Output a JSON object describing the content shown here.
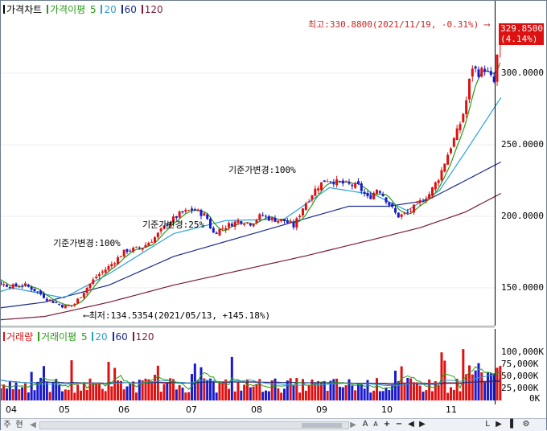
{
  "price_legend": {
    "title": "가격차트",
    "ma_label": "가격이평",
    "periods": [
      "5",
      "20",
      "60",
      "120"
    ]
  },
  "volume_legend": {
    "title": "거래량",
    "ma_label": "거래이평",
    "periods": [
      "5",
      "20",
      "60",
      "120"
    ]
  },
  "colors": {
    "up": "#dd1111",
    "down": "#1a1acc",
    "ma5": "#2a9a18",
    "ma20": "#2aa0d8",
    "ma60": "#1b2d8a",
    "ma120": "#7a1a3a"
  },
  "price_axis": [
    "300.0000",
    "250.0000",
    "200.0000",
    "150.0000"
  ],
  "volume_axis": [
    "100,000K",
    "75,000K",
    "50,000K",
    "25,000K",
    "0K"
  ],
  "current_price": "329.8500",
  "current_change": "(4.14%)",
  "high_annotation": "최고:330.8800(2021/11/19, -0.31%)",
  "low_annotation": "최저:134.5354(2021/05/13, +145.18%)",
  "base_price_changes": [
    "기준가변경:100%",
    "기준가변경:25%",
    "기준가변경:100%"
  ],
  "x_labels": [
    "04",
    "05",
    "06",
    "07",
    "08",
    "09",
    "10",
    "11"
  ],
  "bottom_bar": {
    "period_tabs": [
      "주",
      "현"
    ],
    "scroll_left": "◀",
    "scroll_right": "▶",
    "font_increase": "A",
    "font_decrease": "A",
    "zoom_in": "+",
    "zoom_out": "−",
    "move_left": "◀",
    "move_right": "▶",
    "lines": "L",
    "end_right": "▶",
    "bars": "▌",
    "settings": "⚙"
  },
  "chart_data": {
    "type": "candlestick",
    "ylim": [
      125,
      340
    ],
    "volume_ylim": [
      0,
      110000
    ],
    "x_labels": [
      "04",
      "05",
      "06",
      "07",
      "08",
      "09",
      "10",
      "11"
    ],
    "high": {
      "value": 330.88,
      "date": "2021/11/19",
      "pct": "-0.31%"
    },
    "low": {
      "value": 134.5354,
      "date": "2021/05/13",
      "pct": "+145.18%"
    },
    "last": {
      "value": 329.85,
      "pct": "4.14%"
    },
    "close_anchors": [
      {
        "month": 3.3,
        "close": 137
      },
      {
        "month": 3.5,
        "close": 155
      },
      {
        "month": 3.65,
        "close": 160
      },
      {
        "month": 3.8,
        "close": 153
      },
      {
        "month": 4.0,
        "close": 151
      },
      {
        "month": 4.2,
        "close": 152
      },
      {
        "month": 4.4,
        "close": 147
      },
      {
        "month": 4.55,
        "close": 142
      },
      {
        "month": 4.8,
        "close": 137
      },
      {
        "month": 4.95,
        "close": 138
      },
      {
        "month": 5.1,
        "close": 147
      },
      {
        "month": 5.3,
        "close": 158
      },
      {
        "month": 5.5,
        "close": 165
      },
      {
        "month": 5.75,
        "close": 176
      },
      {
        "month": 6.0,
        "close": 178
      },
      {
        "month": 6.2,
        "close": 185
      },
      {
        "month": 6.4,
        "close": 195
      },
      {
        "month": 6.6,
        "close": 202
      },
      {
        "month": 6.8,
        "close": 205
      },
      {
        "month": 7.0,
        "close": 200
      },
      {
        "month": 7.1,
        "close": 188
      },
      {
        "month": 7.25,
        "close": 192
      },
      {
        "month": 7.5,
        "close": 197
      },
      {
        "month": 7.7,
        "close": 195
      },
      {
        "month": 7.85,
        "close": 201
      },
      {
        "month": 8.0,
        "close": 198
      },
      {
        "month": 8.2,
        "close": 197
      },
      {
        "month": 8.35,
        "close": 193
      },
      {
        "month": 8.5,
        "close": 207
      },
      {
        "month": 8.7,
        "close": 220
      },
      {
        "month": 8.85,
        "close": 226
      },
      {
        "month": 9.0,
        "close": 224
      },
      {
        "month": 9.2,
        "close": 222
      },
      {
        "month": 9.35,
        "close": 221
      },
      {
        "month": 9.5,
        "close": 212
      },
      {
        "month": 9.65,
        "close": 220
      },
      {
        "month": 9.8,
        "close": 210
      },
      {
        "month": 9.95,
        "close": 200
      },
      {
        "month": 10.1,
        "close": 202
      },
      {
        "month": 10.3,
        "close": 210
      },
      {
        "month": 10.45,
        "close": 216
      },
      {
        "month": 10.6,
        "close": 228
      },
      {
        "month": 10.75,
        "close": 246
      },
      {
        "month": 10.9,
        "close": 262
      },
      {
        "month": 11.0,
        "close": 277
      },
      {
        "month": 11.1,
        "close": 305
      },
      {
        "month": 11.2,
        "close": 300
      },
      {
        "month": 11.3,
        "close": 303
      },
      {
        "month": 11.45,
        "close": 293
      },
      {
        "month": 11.5,
        "close": 316
      },
      {
        "month": 11.55,
        "close": 329.85
      }
    ],
    "ma_levels": {
      "ma20": [
        {
          "month": 3.3,
          "v": 140
        },
        {
          "month": 4.0,
          "v": 150
        },
        {
          "month": 4.8,
          "v": 143
        },
        {
          "month": 5.5,
          "v": 160
        },
        {
          "month": 6.5,
          "v": 188
        },
        {
          "month": 7.3,
          "v": 197
        },
        {
          "month": 8.2,
          "v": 198
        },
        {
          "month": 8.9,
          "v": 220
        },
        {
          "month": 9.6,
          "v": 215
        },
        {
          "month": 10.1,
          "v": 204
        },
        {
          "month": 10.6,
          "v": 218
        },
        {
          "month": 11.0,
          "v": 245
        },
        {
          "month": 11.55,
          "v": 283
        }
      ],
      "ma60": [
        {
          "month": 3.3,
          "v": 133
        },
        {
          "month": 4.5,
          "v": 140
        },
        {
          "month": 5.5,
          "v": 152
        },
        {
          "month": 6.5,
          "v": 172
        },
        {
          "month": 7.5,
          "v": 185
        },
        {
          "month": 8.5,
          "v": 198
        },
        {
          "month": 9.2,
          "v": 207
        },
        {
          "month": 9.8,
          "v": 207
        },
        {
          "month": 10.4,
          "v": 211
        },
        {
          "month": 11.0,
          "v": 225
        },
        {
          "month": 11.55,
          "v": 238
        }
      ],
      "ma120": [
        {
          "month": 3.3,
          "v": 126
        },
        {
          "month": 4.5,
          "v": 130
        },
        {
          "month": 5.5,
          "v": 140
        },
        {
          "month": 6.5,
          "v": 152
        },
        {
          "month": 7.5,
          "v": 162
        },
        {
          "month": 8.5,
          "v": 172
        },
        {
          "month": 9.5,
          "v": 183
        },
        {
          "month": 10.3,
          "v": 192
        },
        {
          "month": 11.0,
          "v": 203
        },
        {
          "month": 11.55,
          "v": 216
        }
      ]
    }
  }
}
